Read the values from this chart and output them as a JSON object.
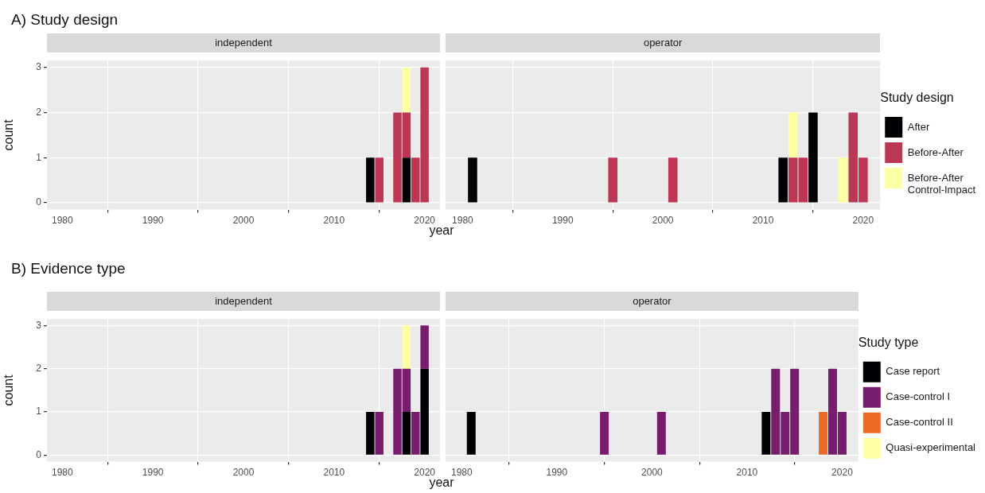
{
  "chart_data": [
    {
      "type": "bar",
      "title": "A) Study design",
      "subtitle": "independent",
      "xlabel": "year",
      "ylabel": "count",
      "stacked": true,
      "grid": true,
      "legend": false,
      "xlim": [
        1978.3,
        2021.7
      ],
      "xticks": [
        1980,
        1990,
        2000,
        2010,
        2020
      ],
      "ylim": [
        -0.15,
        3.15
      ],
      "yticks": [
        0,
        1,
        2,
        3
      ],
      "x": [
        2014,
        2015,
        2017,
        2018,
        2019,
        2020
      ],
      "series": [
        {
          "color": "#000004",
          "values": [
            1,
            null,
            null,
            1,
            null,
            null
          ]
        },
        {
          "color": "#bb3754",
          "values": [
            null,
            1,
            2,
            1,
            1,
            3
          ]
        },
        {
          "color": "#fcffa4",
          "values": [
            null,
            null,
            null,
            1,
            null,
            null
          ]
        }
      ]
    },
    {
      "type": "bar",
      "subtitle": "operator",
      "legend_title": "Study design",
      "stacked": true,
      "grid": true,
      "legend": "right",
      "tick_labels": "x",
      "xlim": [
        1978.3,
        2021.7
      ],
      "xticks": [
        1980,
        1990,
        2000,
        2010,
        2020
      ],
      "ylim": [
        -0.15,
        3.15
      ],
      "yticks": [
        0,
        1,
        2,
        3
      ],
      "x": [
        1981,
        1995,
        2001,
        2012,
        2013,
        2014,
        2015,
        2018,
        2019,
        2020
      ],
      "series": [
        {
          "name": "After",
          "color": "#000004",
          "values": [
            1,
            null,
            null,
            1,
            null,
            null,
            2,
            null,
            null,
            null
          ]
        },
        {
          "name": "Before-After",
          "color": "#bb3754",
          "values": [
            null,
            1,
            1,
            null,
            1,
            1,
            null,
            null,
            2,
            1
          ]
        },
        {
          "name": "Before-After Control-Impact",
          "color": "#fcffa4",
          "values": [
            null,
            null,
            null,
            null,
            1,
            null,
            null,
            1,
            null,
            null
          ]
        }
      ]
    },
    {
      "type": "bar",
      "title": "B) Evidence type",
      "subtitle": "independent",
      "xlabel": "year",
      "ylabel": "count",
      "stacked": true,
      "grid": true,
      "legend": false,
      "xlim": [
        1978.3,
        2021.7
      ],
      "xticks": [
        1980,
        1990,
        2000,
        2010,
        2020
      ],
      "ylim": [
        -0.15,
        3.15
      ],
      "yticks": [
        0,
        1,
        2,
        3
      ],
      "x": [
        2014,
        2015,
        2017,
        2018,
        2019,
        2020
      ],
      "series": [
        {
          "color": "#000004",
          "values": [
            1,
            null,
            null,
            1,
            null,
            2
          ]
        },
        {
          "color": "#781c6d",
          "values": [
            null,
            1,
            2,
            1,
            1,
            1
          ]
        },
        {
          "color": "#fcffa4",
          "values": [
            null,
            null,
            null,
            1,
            null,
            null
          ]
        }
      ]
    },
    {
      "type": "bar",
      "subtitle": "operator",
      "legend_title": "Study type",
      "stacked": true,
      "grid": true,
      "legend": "right",
      "tick_labels": "x",
      "xlim": [
        1978.3,
        2021.7
      ],
      "xticks": [
        1980,
        1990,
        2000,
        2010,
        2020
      ],
      "ylim": [
        -0.15,
        3.15
      ],
      "yticks": [
        0,
        1,
        2,
        3
      ],
      "x": [
        1981,
        1995,
        2001,
        2012,
        2013,
        2014,
        2015,
        2018,
        2019,
        2020
      ],
      "series": [
        {
          "name": "Case report",
          "color": "#000004",
          "values": [
            1,
            null,
            null,
            1,
            null,
            null,
            null,
            null,
            null,
            null
          ]
        },
        {
          "name": "Case-control I",
          "color": "#781c6d",
          "values": [
            null,
            1,
            1,
            null,
            2,
            1,
            2,
            null,
            2,
            1
          ]
        },
        {
          "name": "Case-control II",
          "color": "#ed6925",
          "values": [
            null,
            null,
            null,
            null,
            null,
            null,
            null,
            1,
            null,
            null
          ]
        },
        {
          "name": "Quasi-experimental",
          "color": "#fcffa4",
          "values": [
            null,
            null,
            null,
            null,
            null,
            null,
            null,
            null,
            null,
            null
          ]
        }
      ]
    }
  ]
}
